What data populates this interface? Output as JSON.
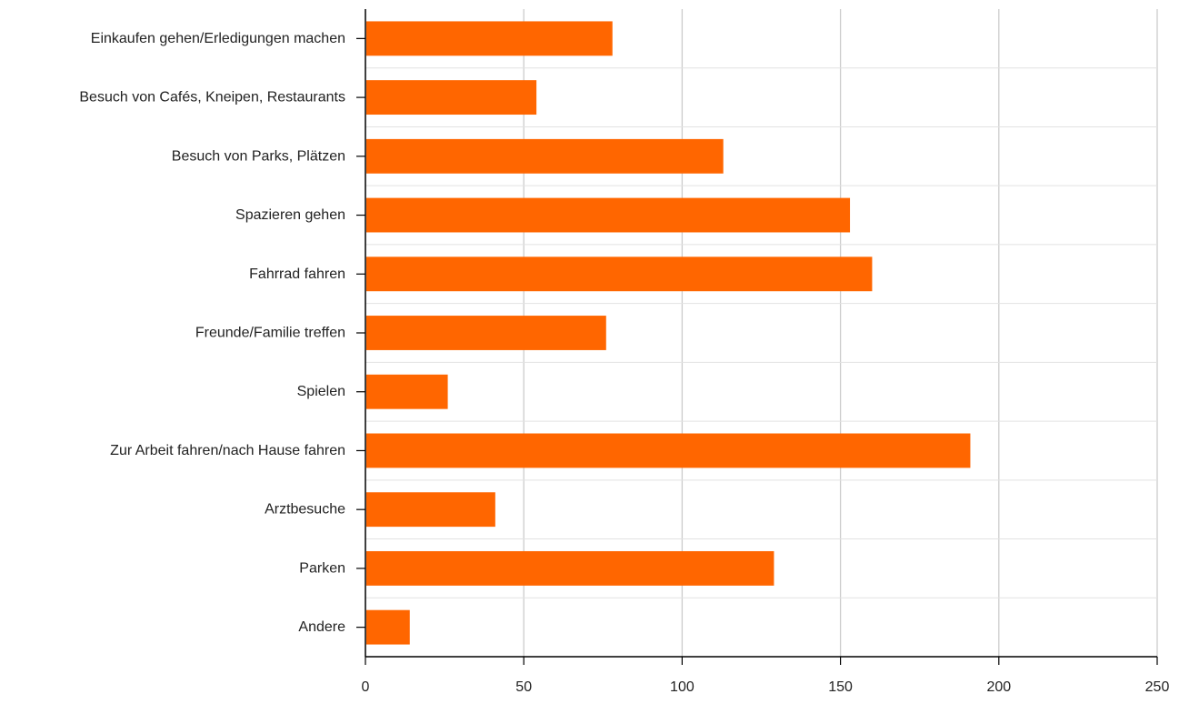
{
  "chart_data": {
    "type": "bar",
    "orientation": "horizontal",
    "title": "",
    "xlabel": "",
    "ylabel": "",
    "categories": [
      "Einkaufen gehen/Erledigungen machen",
      "Besuch von Cafés, Kneipen, Restaurants",
      "Besuch von Parks, Plätzen",
      "Spazieren gehen",
      "Fahrrad fahren",
      "Freunde/Familie treffen",
      "Spielen",
      "Zur Arbeit fahren/nach Hause fahren",
      "Arztbesuche",
      "Parken",
      "Andere"
    ],
    "values": [
      78,
      54,
      113,
      153,
      160,
      76,
      26,
      191,
      41,
      129,
      14
    ],
    "xlim": [
      0,
      250
    ],
    "xticks": [
      0,
      50,
      100,
      150,
      200,
      250
    ],
    "xtick_labels": [
      "0",
      "50",
      "100",
      "150",
      "200",
      "250"
    ],
    "grid": true,
    "legend": "none",
    "colors": {
      "bar": "#ff6600",
      "grid": "#cccccc",
      "axis": "#000000",
      "text": "#222222"
    }
  }
}
